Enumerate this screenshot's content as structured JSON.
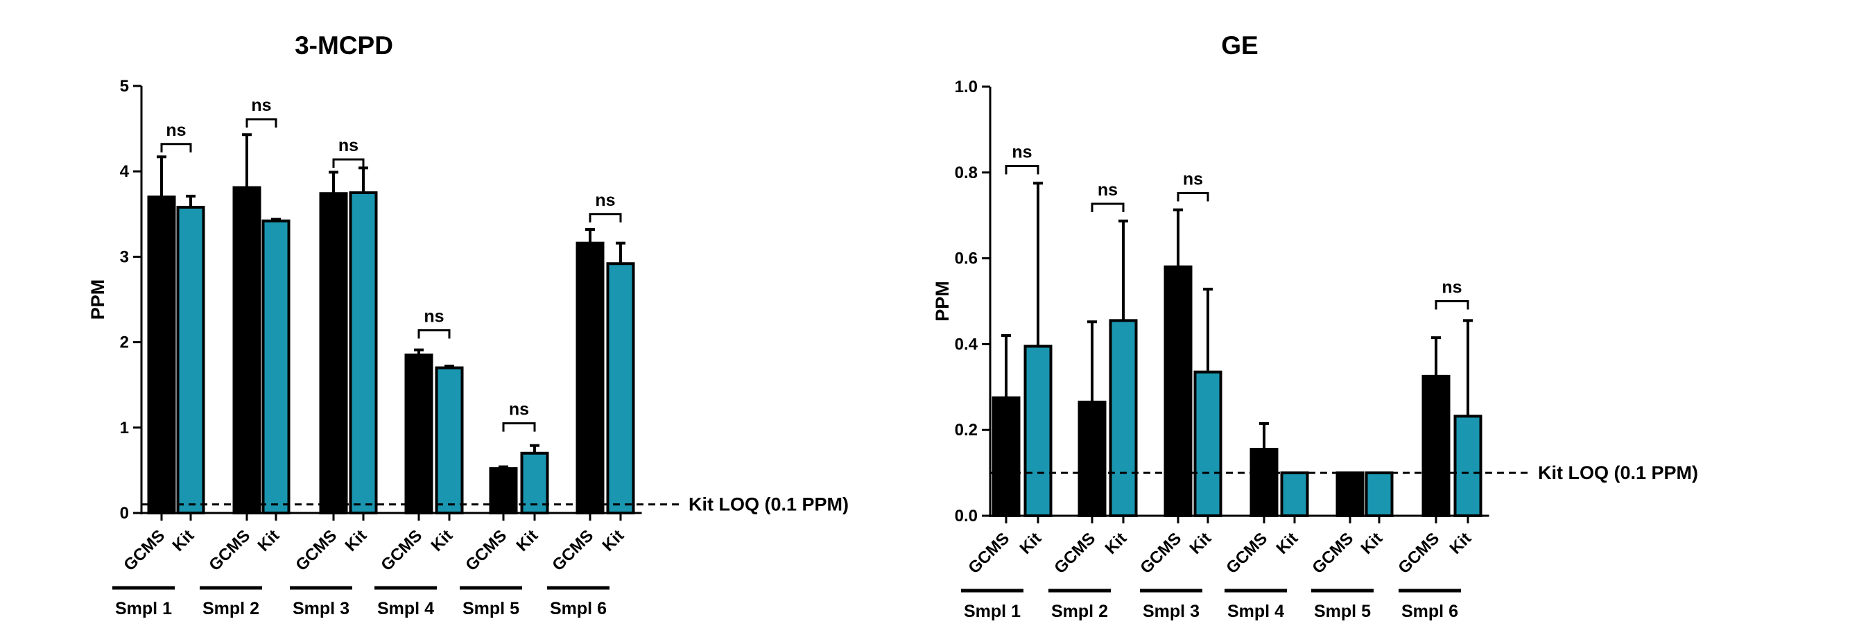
{
  "chart_data": [
    {
      "type": "bar",
      "title": "3-MCPD",
      "ylabel": "PPM",
      "ylim": [
        0,
        5
      ],
      "yticks": [
        "0",
        "1",
        "2",
        "3",
        "4",
        "5"
      ],
      "categories": [
        "GCMS",
        "Kit",
        "GCMS",
        "Kit",
        "GCMS",
        "Kit",
        "GCMS",
        "Kit",
        "GCMS",
        "Kit",
        "GCMS",
        "Kit"
      ],
      "groups": [
        "Smpl 1",
        "Smpl 2",
        "Smpl 3",
        "Smpl 4",
        "Smpl 5",
        "Smpl 6"
      ],
      "values": [
        3.7,
        3.58,
        3.81,
        3.42,
        3.74,
        3.75,
        1.85,
        1.7,
        0.52,
        0.7,
        3.16,
        2.92
      ],
      "errors": [
        0.47,
        0.13,
        0.62,
        0.02,
        0.25,
        0.29,
        0.06,
        0.02,
        0.02,
        0.09,
        0.16,
        0.24
      ],
      "bar_colors": [
        "#000000",
        "#1a96b0"
      ],
      "reference_line": {
        "value": 0.1,
        "label": "Kit LOQ (0.1 PPM)"
      },
      "annotations": [
        {
          "group": 0,
          "text": "ns",
          "y": 4.32
        },
        {
          "group": 1,
          "text": "ns",
          "y": 4.61
        },
        {
          "group": 2,
          "text": "ns",
          "y": 4.14
        },
        {
          "group": 3,
          "text": "ns",
          "y": 2.14
        },
        {
          "group": 4,
          "text": "ns",
          "y": 1.05
        },
        {
          "group": 5,
          "text": "ns",
          "y": 3.5
        }
      ]
    },
    {
      "type": "bar",
      "title": "GE",
      "ylabel": "PPM",
      "ylim": [
        0,
        1.0
      ],
      "yticks": [
        "0.0",
        "0.2",
        "0.4",
        "0.6",
        "0.8",
        "1.0"
      ],
      "categories": [
        "GCMS",
        "Kit",
        "GCMS",
        "Kit",
        "GCMS",
        "Kit",
        "GCMS",
        "Kit",
        "GCMS",
        "Kit",
        "GCMS",
        "Kit"
      ],
      "groups": [
        "Smpl 1",
        "Smpl 2",
        "Smpl 3",
        "Smpl 4",
        "Smpl 5",
        "Smpl 6"
      ],
      "values": [
        0.275,
        0.395,
        0.265,
        0.455,
        0.58,
        0.335,
        0.155,
        0.1,
        0.1,
        0.1,
        0.325,
        0.232
      ],
      "errors": [
        0.145,
        0.38,
        0.187,
        0.232,
        0.133,
        0.193,
        0.06,
        0.0,
        0.0,
        0.0,
        0.09,
        0.223
      ],
      "bar_colors": [
        "#000000",
        "#1a96b0"
      ],
      "reference_line": {
        "value": 0.1,
        "label": "Kit LOQ (0.1 PPM)"
      },
      "annotations": [
        {
          "group": 0,
          "text": "ns",
          "y": 0.815
        },
        {
          "group": 1,
          "text": "ns",
          "y": 0.727
        },
        {
          "group": 2,
          "text": "ns",
          "y": 0.752
        },
        {
          "group": 5,
          "text": "ns",
          "y": 0.5
        }
      ]
    }
  ]
}
